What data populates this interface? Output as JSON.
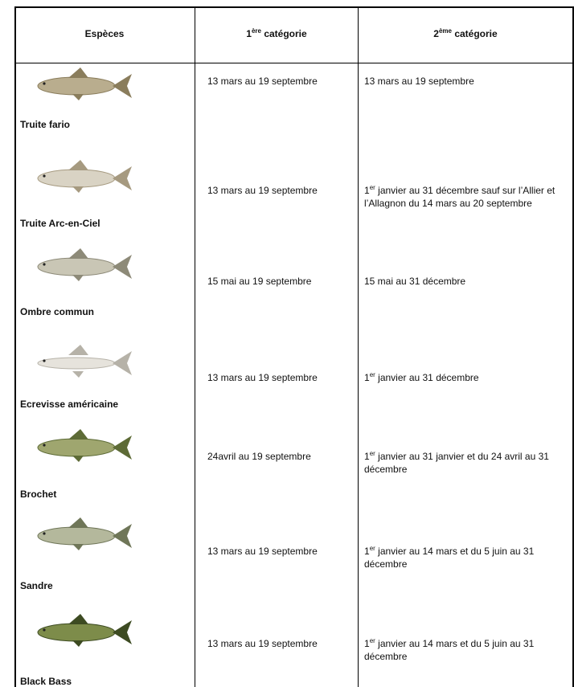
{
  "table": {
    "headers": [
      {
        "text": "Espèces"
      },
      {
        "pre": "1",
        "sup": "ère",
        "text": " catégorie"
      },
      {
        "pre": "2",
        "sup": "ème",
        "text": " catégorie"
      }
    ],
    "rows": [
      {
        "species": "Truite fario",
        "period_1": "13 mars au 19 septembre",
        "period_2": {
          "text": "13 mars au 19 septembre"
        }
      },
      {
        "species": "Truite Arc-en-Ciel",
        "period_1": "13 mars au 19 septembre",
        "period_2": {
          "pre": "1",
          "sup": "er",
          "text": " janvier au 31 décembre sauf sur l’Allier et l’Allagnon du 14 mars au 20 septembre"
        }
      },
      {
        "species": "Ombre commun",
        "period_1": "15 mai au 19 septembre",
        "period_2": {
          "text": "15 mai au 31 décembre"
        }
      },
      {
        "species": "Ecrevisse américaine",
        "period_1": "13 mars au 19 septembre",
        "period_2": {
          "pre": "1",
          "sup": "er",
          "text": " janvier au 31 décembre"
        }
      },
      {
        "species": "Brochet",
        "period_1": "24avril au 19 septembre",
        "period_2": {
          "pre": "1",
          "sup": "er",
          "text": " janvier au 31 janvier et du 24 avril au 31 décembre"
        }
      },
      {
        "species": "Sandre",
        "period_1": "13 mars au 19 septembre",
        "period_2": {
          "pre": "1",
          "sup": "er",
          "text": " janvier au 14 mars et du 5 juin au 31 décembre"
        }
      },
      {
        "species": "Black Bass",
        "period_1": "13 mars au 19 septembre",
        "period_2": {
          "pre": "1",
          "sup": "er",
          "text": " janvier au 14 mars et du 5 juin au 31 décembre"
        }
      }
    ]
  }
}
